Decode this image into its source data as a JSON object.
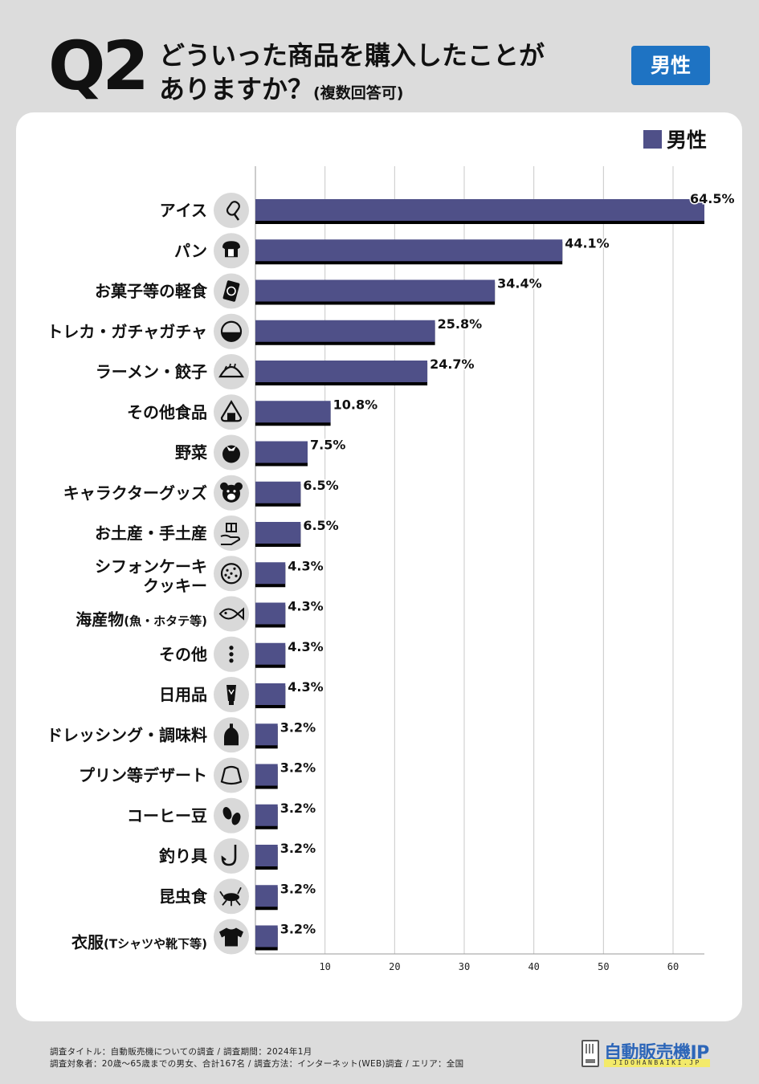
{
  "header": {
    "q_label": "Q2",
    "title_line1": "どういった商品を購入したことが",
    "title_line2": "ありますか？",
    "title_note": "(複数回答可)",
    "badge": "男性"
  },
  "colors": {
    "bar": "#4f5088",
    "bar_shadow": "#000000",
    "badge": "#1e73c3",
    "icon_bg": "#d9d9d9"
  },
  "chart_data": {
    "type": "bar",
    "orientation": "horizontal",
    "legend": "男性",
    "legend_position": "top-right",
    "categories": [
      {
        "label": "アイス",
        "icon": "ice-pop-icon"
      },
      {
        "label": "パン",
        "icon": "bread-icon"
      },
      {
        "label": "お菓子等の軽食",
        "icon": "snack-bag-icon"
      },
      {
        "label": "トレカ・ガチャガチャ",
        "icon": "capsule-toy-icon"
      },
      {
        "label": "ラーメン・餃子",
        "icon": "gyoza-icon"
      },
      {
        "label": "その他食品",
        "icon": "onigiri-icon"
      },
      {
        "label": "野菜",
        "icon": "tomato-icon"
      },
      {
        "label": "キャラクターグッズ",
        "icon": "bear-face-icon"
      },
      {
        "label": "お土産・手土産",
        "icon": "gift-hand-icon"
      },
      {
        "label": "シフォンケーキ",
        "label2": "クッキー",
        "icon": "cookie-icon"
      },
      {
        "label": "海産物",
        "paren": "(魚・ホタテ等)",
        "icon": "fish-icon"
      },
      {
        "label": "その他",
        "icon": "more-dots-icon"
      },
      {
        "label": "日用品",
        "icon": "tube-icon"
      },
      {
        "label": "ドレッシング・調味料",
        "icon": "bottle-icon"
      },
      {
        "label": "プリン等デザート",
        "icon": "pudding-icon"
      },
      {
        "label": "コーヒー豆",
        "icon": "coffee-beans-icon"
      },
      {
        "label": "釣り具",
        "icon": "fish-hook-icon"
      },
      {
        "label": "昆虫食",
        "icon": "insect-icon"
      },
      {
        "label": "衣服",
        "paren": "(Tシャツや靴下等)",
        "icon": "tshirt-icon"
      }
    ],
    "series": [
      {
        "name": "男性",
        "values": [
          64.5,
          44.1,
          34.4,
          25.8,
          24.7,
          10.8,
          7.5,
          6.5,
          6.5,
          4.3,
          4.3,
          4.3,
          4.3,
          3.2,
          3.2,
          3.2,
          3.2,
          3.2,
          3.2
        ]
      }
    ],
    "value_suffix": "%",
    "xlim": [
      0,
      64.5
    ],
    "xticks": [
      10,
      20,
      30,
      40,
      50,
      60
    ],
    "grid": "vertical"
  },
  "footer": {
    "line1": "調査タイトル：自動販売機についての調査 / 調査期間：2024年1月",
    "line2": "調査対象者：20歳～65歳までの男女、合計167名 / 調査方法：インターネット(WEB)調査 / エリア：全国"
  },
  "logo": {
    "text": "自動販売機JP",
    "sub": "JIDOHANBAIKI.JP"
  }
}
